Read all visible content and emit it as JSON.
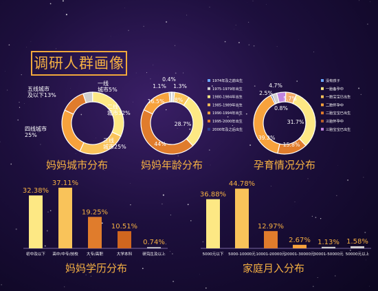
{
  "header": {
    "title": "调研人群画像"
  },
  "colors": {
    "yellow": "#fde884",
    "gold": "#f9c35a",
    "orange": "#f7a23c",
    "orange_dark": "#e07c2c",
    "peach": "#f4ad6a",
    "brown": "#d0661f",
    "grey": "#cfcfcf",
    "lilac": "#c084e0",
    "blue": "#6aa6ff"
  },
  "chart_data": [
    {
      "type": "pie",
      "title": "妈妈城市分布",
      "labels": [
        "一线城市",
        "二线城市",
        "三线城市",
        "四线城市",
        "五线城市及以下"
      ],
      "values": [
        5,
        32,
        25,
        25,
        13
      ],
      "value_labels": [
        "5%",
        "32%",
        "25%",
        "25%",
        "13%"
      ],
      "display_labels": [
        [
          "一线",
          "城市5%"
        ],
        [
          "二线",
          "城市32%"
        ],
        [
          "三线",
          "城市25%"
        ],
        [
          "四线城市",
          "25%"
        ],
        [
          "五线城市",
          "及以下13%"
        ]
      ],
      "colors": [
        "#cfcfcf",
        "#fde884",
        "#f9c35a",
        "#f7a23c",
        "#e07c2c"
      ]
    },
    {
      "type": "pie",
      "title": "妈妈年龄分布",
      "labels": [
        "1974年及之前出生",
        "1975-1979年出生",
        "1980-1984年出生",
        "1985-1989年出生",
        "1990-1994年出生",
        "1995-2000年出生",
        "2000年及之后出生"
      ],
      "values": [
        0.4,
        1.3,
        8,
        28.7,
        44,
        16.5,
        1.1
      ],
      "value_labels": [
        "0.4%",
        "1.3%",
        "8%",
        "28.7%",
        "44%",
        "16.5%",
        "1.1%"
      ],
      "legend_colors": [
        "#6aa6ff",
        "#cfcfcf",
        "#fde884",
        "#f9c35a",
        "#f7a23c",
        "#e07c2c",
        "#2c3e8c"
      ],
      "colors": [
        "#6aa6ff",
        "#cfcfcf",
        "#f9c35a",
        "#fde884",
        "#e07c2c",
        "#f7a23c",
        "#b9b9b9"
      ]
    },
    {
      "type": "pie",
      "title": "孕育情况分布",
      "labels": [
        "没有孩子",
        "一胎备孕中",
        "一胎宝宝已出生",
        "二胎怀孕中",
        "二胎宝宝已出生",
        "三胎怀孕中",
        "三胎宝宝已出生"
      ],
      "values": [
        5.7,
        31.7,
        15.8,
        39.2,
        0.8,
        2.5,
        4.7
      ],
      "value_labels": [
        "5.7%",
        "31.7%",
        "15.8%",
        "39.2%",
        "0.8%",
        "2.5%",
        "4.7%"
      ],
      "legend_colors": [
        "#6aa6ff",
        "#fde884",
        "#f9c35a",
        "#f7a23c",
        "#e07c2c",
        "#b55d2a",
        "#c084e0"
      ],
      "colors": [
        "#f4ad6a",
        "#fde884",
        "#e07c2c",
        "#f7a23c",
        "#2c3e8c",
        "#cfcfcf",
        "#c084e0"
      ]
    },
    {
      "type": "bar",
      "title": "妈妈学历分布",
      "categories": [
        "初中及以下",
        "高中/中专/技校",
        "大专/高职",
        "大学本科",
        "研究生及以上"
      ],
      "values": [
        32.38,
        37.11,
        19.25,
        10.51,
        0.74
      ],
      "value_labels": [
        "32.38%",
        "37.11%",
        "19.25%",
        "10.51%",
        "0.74%"
      ],
      "colors": [
        "#fde884",
        "#f9c35a",
        "#e07c2c",
        "#d0661f",
        "#cfcfcf"
      ],
      "ylim": [
        0,
        40
      ]
    },
    {
      "type": "bar",
      "title": "家庭月入分布",
      "categories": [
        "5000元以下",
        "5000-10000元",
        "10001-20000元",
        "20001-30000元",
        "30001-50000元",
        "50000元以上"
      ],
      "values": [
        36.88,
        44.78,
        12.97,
        2.67,
        1.13,
        1.58
      ],
      "value_labels": [
        "36.88%",
        "44.78%",
        "12.97%",
        "2.67%",
        "1.13%",
        "1.58%"
      ],
      "colors": [
        "#fde884",
        "#f9c35a",
        "#e07c2c",
        "#f7a23c",
        "#cfcfcf",
        "#cfcfcf"
      ],
      "ylim": [
        0,
        48
      ]
    }
  ]
}
